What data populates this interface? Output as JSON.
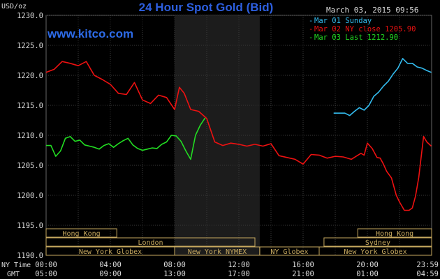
{
  "header": {
    "title": "24 Hour Spot Gold (Bid)",
    "site": "www.kitco.com",
    "timestamp": "March 03, 2015 09:56",
    "y_unit": "USD/oz"
  },
  "legend": [
    {
      "label": "Mar 01 Sunday",
      "color": "#33bbee"
    },
    {
      "label": "Mar 02 NY close 1205.90",
      "color": "#ee1111"
    },
    {
      "label": "Mar 03 Last 1212.90",
      "color": "#22dd22"
    }
  ],
  "axes": {
    "y_ticks": [
      "1230.0",
      "1225.0",
      "1220.0",
      "1215.0",
      "1210.0",
      "1205.0",
      "1200.0",
      "1195.0",
      "1190.0"
    ],
    "row_label_ny": "NY Time",
    "row_label_gmt": "GMT",
    "ny_ticks": [
      "00:00",
      "04:00",
      "08:00",
      "12:00",
      "16:00",
      "20:00",
      "23:59"
    ],
    "gmt_ticks": [
      "05:00",
      "09:00",
      "13:00",
      "17:00",
      "21:00",
      "01:00",
      "04:59"
    ]
  },
  "sessions": [
    {
      "label": "Hong Kong",
      "start": 0,
      "end": 4.4
    },
    {
      "label": "Hong Kong",
      "start": 19.4,
      "end": 24
    },
    {
      "label": "London",
      "start": 0,
      "end": 13.0
    },
    {
      "label": "Sydney",
      "start": 17.3,
      "end": 24
    },
    {
      "label": "New York Globex",
      "start": 0,
      "end": 8.0
    },
    {
      "label": "New York NYMEX",
      "start": 8.0,
      "end": 13.3
    },
    {
      "label": "NY Globex",
      "start": 13.3,
      "end": 17.0
    },
    {
      "label": "New York Globex",
      "start": 17.0,
      "end": 24
    }
  ],
  "chart_data": {
    "type": "line",
    "title": "24 Hour Spot Gold (Bid)",
    "ylabel": "USD/oz",
    "xlabel": "NY Time",
    "ylim": [
      1190,
      1230
    ],
    "xlim": [
      0,
      24
    ],
    "grid": true,
    "legend_position": "top-right",
    "shaded_region": [
      8.0,
      13.3
    ],
    "series": [
      {
        "name": "Mar 01 Sunday",
        "color": "#33bbee",
        "x": [
          17.9,
          18.3,
          18.6,
          18.9,
          19.2,
          19.5,
          19.8,
          20.1,
          20.4,
          20.7,
          21.0,
          21.3,
          21.6,
          21.9,
          22.2,
          22.5,
          22.8,
          23.1,
          23.4,
          23.7,
          23.98
        ],
        "y": [
          1213.7,
          1213.7,
          1213.7,
          1213.3,
          1214.0,
          1214.6,
          1214.2,
          1215.0,
          1216.5,
          1217.2,
          1218.2,
          1219.0,
          1220.2,
          1221.2,
          1222.8,
          1222.0,
          1222.0,
          1221.4,
          1221.2,
          1220.8,
          1220.5
        ]
      },
      {
        "name": "Mar 02 NY close 1205.90",
        "color": "#ee1111",
        "x": [
          0,
          0.5,
          1.0,
          1.5,
          2.0,
          2.5,
          3.0,
          3.5,
          4.0,
          4.5,
          5.0,
          5.5,
          6.0,
          6.5,
          7.0,
          7.5,
          8.0,
          8.3,
          8.6,
          9.0,
          9.5,
          10.0,
          10.5,
          11.0,
          11.5,
          12.0,
          12.5,
          13.0,
          13.5,
          14.0,
          14.5,
          15.0,
          15.5,
          16.0,
          16.5,
          17.0,
          17.5,
          18.0,
          18.5,
          19.0,
          19.3,
          19.6,
          19.8,
          20.0,
          20.3,
          20.6,
          20.8,
          21.0,
          21.2,
          21.5,
          21.8,
          22.0,
          22.3,
          22.6,
          22.8,
          23.0,
          23.2,
          23.5,
          23.7,
          23.98
        ],
        "y": [
          1220.5,
          1221.0,
          1222.3,
          1222.0,
          1221.6,
          1222.3,
          1220.0,
          1219.3,
          1218.5,
          1217.0,
          1216.8,
          1218.8,
          1215.9,
          1215.3,
          1216.7,
          1216.3,
          1214.3,
          1218.0,
          1217.0,
          1214.3,
          1214.0,
          1212.8,
          1208.9,
          1208.3,
          1208.7,
          1208.5,
          1208.2,
          1208.5,
          1208.2,
          1208.6,
          1206.6,
          1206.3,
          1206.0,
          1205.2,
          1206.8,
          1206.7,
          1206.2,
          1206.5,
          1206.4,
          1206.0,
          1206.5,
          1207.0,
          1206.7,
          1208.7,
          1207.8,
          1206.3,
          1206.2,
          1205.2,
          1204.0,
          1202.9,
          1200.0,
          1198.9,
          1197.5,
          1197.5,
          1197.9,
          1199.9,
          1203.0,
          1209.8,
          1208.9,
          1208.2
        ]
      },
      {
        "name": "Mar 03 Last 1212.90",
        "color": "#22dd22",
        "x": [
          0,
          0.3,
          0.6,
          0.9,
          1.2,
          1.5,
          1.8,
          2.1,
          2.4,
          2.7,
          3.0,
          3.3,
          3.6,
          3.9,
          4.2,
          4.5,
          4.8,
          5.1,
          5.4,
          5.7,
          6.0,
          6.3,
          6.6,
          6.9,
          7.2,
          7.5,
          7.8,
          8.1,
          8.4,
          8.7,
          9.0,
          9.3,
          9.6,
          9.9
        ],
        "y": [
          1208.3,
          1208.3,
          1206.5,
          1207.4,
          1209.5,
          1209.8,
          1209.0,
          1209.2,
          1208.4,
          1208.2,
          1208.0,
          1207.7,
          1208.3,
          1208.6,
          1208.0,
          1208.6,
          1209.1,
          1209.5,
          1208.4,
          1207.8,
          1207.5,
          1207.7,
          1207.9,
          1207.8,
          1208.5,
          1208.9,
          1210.0,
          1209.9,
          1209.0,
          1207.4,
          1206.0,
          1210.0,
          1211.7,
          1212.9
        ]
      }
    ]
  }
}
